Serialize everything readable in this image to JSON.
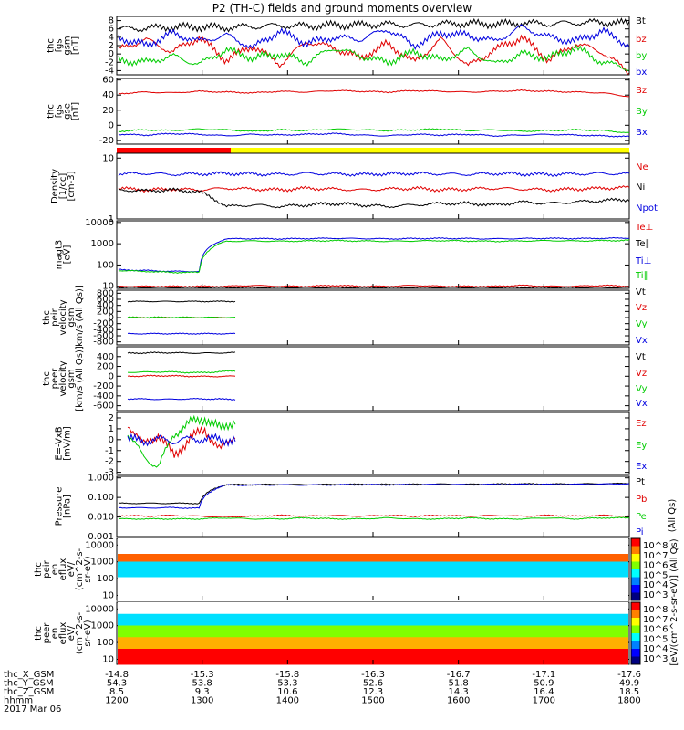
{
  "title": "P2 (TH-C) fields and ground moments overview",
  "colors": {
    "black": "#000000",
    "red": "#e00000",
    "green": "#00cc00",
    "blue": "#0000e0",
    "bar_red": "#ff0000",
    "bar_yellow": "#ffff00"
  },
  "chart_data": [
    {
      "type": "line",
      "id": "fgs_gsm",
      "ylabel": [
        "thc",
        "fgs",
        "gsm",
        "[nT]"
      ],
      "ylim": [
        -5,
        9
      ],
      "yticks": [
        "8",
        "6",
        "4",
        "2",
        "0",
        "-2",
        "-4"
      ],
      "series": [
        {
          "name": "Bt",
          "color": "#000000",
          "values": [
            6.0,
            6.2,
            6.4,
            6.5,
            6.3,
            6.6,
            6.8,
            6.7,
            6.9,
            7.0,
            7.1,
            6.9,
            7.2,
            7.3,
            7.1,
            7.4,
            7.2,
            7.5,
            7.6,
            7.3
          ]
        },
        {
          "name": "bz",
          "color": "#e00000",
          "values": [
            1.0,
            3.5,
            0.5,
            4.0,
            -1.5,
            2.0,
            -2.5,
            3.0,
            1.5,
            -1.0,
            2.5,
            -2.0,
            3.5,
            -3.0,
            1.0,
            4.0,
            -1.5,
            2.5,
            0.5,
            -4.5
          ]
        },
        {
          "name": "by",
          "color": "#00cc00",
          "values": [
            -1.5,
            -2.0,
            -0.5,
            -2.5,
            1.0,
            -1.0,
            0.0,
            -2.0,
            1.5,
            -0.5,
            -2.0,
            0.5,
            -1.5,
            1.0,
            -2.5,
            0.0,
            -1.0,
            1.5,
            -2.0,
            -3.5
          ]
        },
        {
          "name": "bx",
          "color": "#0000e0",
          "values": [
            4.0,
            2.0,
            5.0,
            3.0,
            4.5,
            1.5,
            5.5,
            2.5,
            4.0,
            3.5,
            6.0,
            2.0,
            5.0,
            4.5,
            3.0,
            6.5,
            4.0,
            3.0,
            5.5,
            2.0
          ]
        }
      ]
    },
    {
      "type": "line",
      "id": "fgs_gse",
      "ylabel": [
        "thc",
        "fgs",
        "gse",
        "[nT]"
      ],
      "ylim": [
        -25,
        62
      ],
      "yticks": [
        "60",
        "40",
        "20",
        "0",
        "-20"
      ],
      "series": [
        {
          "name": "Bz",
          "color": "#e00000",
          "values": [
            42,
            44,
            43,
            45,
            44,
            43,
            45,
            44,
            46,
            45,
            44,
            46,
            45,
            44,
            45,
            46,
            45,
            44,
            43,
            38
          ]
        },
        {
          "name": "By",
          "color": "#00cc00",
          "values": [
            -8,
            -6,
            -7,
            -5,
            -6,
            -8,
            -6,
            -7,
            -5,
            -6,
            -7,
            -6,
            -5,
            -7,
            -6,
            -8,
            -7,
            -6,
            -7,
            -10
          ]
        },
        {
          "name": "Bx",
          "color": "#0000e0",
          "values": [
            -12,
            -13,
            -11,
            -12,
            -14,
            -12,
            -13,
            -12,
            -11,
            -13,
            -14,
            -12,
            -13,
            -12,
            -14,
            -13,
            -12,
            -13,
            -14,
            -15
          ]
        }
      ]
    },
    {
      "type": "line",
      "id": "density",
      "ylabel": [
        "Density",
        "[1/cc]",
        "[cm-3]"
      ],
      "ylim_log": [
        1,
        12
      ],
      "yticks": [
        "10",
        "1"
      ],
      "series": [
        {
          "name": "Ne",
          "color": "#e00000",
          "values": [
            3.2,
            3.0,
            3.1,
            3.0,
            3.2,
            3.1,
            3.0,
            3.2,
            3.1,
            3.0,
            3.1,
            3.2,
            3.0,
            3.1,
            3.2,
            3.1,
            3.0,
            3.1,
            3.2,
            3.3
          ]
        },
        {
          "name": "Ni",
          "color": "#000000",
          "values": [
            3.0,
            2.9,
            3.0,
            2.8,
            1.6,
            1.7,
            1.6,
            1.7,
            1.8,
            1.7,
            1.6,
            1.7,
            1.8,
            1.8,
            1.7,
            1.9,
            1.8,
            1.9,
            2.0,
            2.1
          ]
        },
        {
          "name": "Npot",
          "color": "#0000e0",
          "values": [
            5.5,
            5.6,
            5.4,
            5.5,
            5.6,
            5.5,
            5.4,
            5.6,
            5.5,
            5.4,
            5.5,
            5.6,
            5.5,
            5.4,
            5.6,
            5.5,
            5.4,
            5.5,
            5.6,
            5.5
          ]
        }
      ]
    },
    {
      "type": "line",
      "id": "temperature",
      "ylabel": [
        "magt3",
        "[eV]"
      ],
      "ylim_log": [
        8,
        12000
      ],
      "yticks": [
        "10000",
        "1000",
        "100",
        "10"
      ],
      "series": [
        {
          "name": "Te⊥",
          "color": "#e00000",
          "values": [
            10,
            10,
            10,
            10,
            10,
            11,
            10,
            10,
            11,
            10,
            10,
            11,
            10,
            10,
            10,
            11,
            10,
            10,
            11,
            10
          ]
        },
        {
          "name": "Te∥",
          "color": "#000000",
          "values": [
            9,
            9,
            9,
            9,
            9,
            9,
            9,
            9,
            9,
            9,
            9,
            9,
            9,
            9,
            9,
            9,
            9,
            9,
            9,
            9
          ]
        },
        {
          "name": "Ti⊥",
          "color": "#0000e0",
          "values": [
            60,
            55,
            50,
            50,
            1700,
            1750,
            1700,
            1750,
            1800,
            1750,
            1700,
            1750,
            1800,
            1750,
            1700,
            1750,
            1800,
            1750,
            1800,
            1850
          ]
        },
        {
          "name": "Ti∥",
          "color": "#00cc00",
          "values": [
            55,
            50,
            45,
            45,
            1300,
            1350,
            1300,
            1350,
            1400,
            1350,
            1300,
            1350,
            1400,
            1350,
            1300,
            1350,
            1400,
            1350,
            1400,
            1450
          ]
        }
      ]
    },
    {
      "type": "line",
      "id": "peir_velocity",
      "ylabel": [
        "thc",
        "peir",
        "velocity",
        "gsm",
        "[km/s (All Qs)]"
      ],
      "ylim": [
        -900,
        900
      ],
      "yticks": [
        "800",
        "600",
        "400",
        "200",
        "0",
        "-200",
        "-400",
        "-600",
        "-800"
      ],
      "series": [
        {
          "name": "Vt",
          "color": "#000000",
          "values": [
            530,
            530,
            530,
            530
          ]
        },
        {
          "name": "Vz",
          "color": "#e00000",
          "values": [
            0,
            0,
            0,
            0
          ]
        },
        {
          "name": "Vy",
          "color": "#00cc00",
          "values": [
            5,
            5,
            5,
            5
          ]
        },
        {
          "name": "Vx",
          "color": "#0000e0",
          "values": [
            -530,
            -530,
            -530,
            -530
          ]
        }
      ]
    },
    {
      "type": "line",
      "id": "peer_velocity",
      "ylabel": [
        "thc",
        "peer",
        "velocity",
        "gsm",
        "[km/s (All Qs)]"
      ],
      "ylim": [
        -700,
        600
      ],
      "yticks": [
        "400",
        "200",
        "0",
        "-200",
        "-400",
        "-600"
      ],
      "series": [
        {
          "name": "Vt",
          "color": "#000000",
          "values": [
            470,
            480,
            470,
            480
          ]
        },
        {
          "name": "Vz",
          "color": "#e00000",
          "values": [
            0,
            10,
            -5,
            0
          ]
        },
        {
          "name": "Vy",
          "color": "#00cc00",
          "values": [
            80,
            90,
            70,
            110
          ]
        },
        {
          "name": "Vx",
          "color": "#0000e0",
          "values": [
            -460,
            -470,
            -460,
            -470
          ]
        }
      ]
    },
    {
      "type": "line",
      "id": "e_field",
      "ylabel": [
        "E=-VxB",
        "[mV/m]"
      ],
      "ylim": [
        -3.2,
        2.5
      ],
      "yticks": [
        "2",
        "1",
        "0",
        "-1",
        "-2",
        "-3"
      ],
      "series": [
        {
          "name": "Ez",
          "color": "#e00000",
          "values": [
            1.5,
            -0.5,
            0.5,
            -1.5,
            0.0,
            1.0,
            -1.0,
            0.5
          ]
        },
        {
          "name": "Ey",
          "color": "#00cc00",
          "values": [
            0.5,
            -1.5,
            -2.5,
            0.5,
            1.5,
            2.0,
            1.0,
            1.8
          ]
        },
        {
          "name": "Ex",
          "color": "#0000e0",
          "values": [
            0.0,
            -0.1,
            0.0,
            -0.1,
            0.0,
            0.1,
            0.0,
            0.0
          ]
        }
      ]
    },
    {
      "type": "line",
      "id": "pressure",
      "ylabel": [
        "Pressure",
        "[nPa]"
      ],
      "ylim_log": [
        0.001,
        1.2
      ],
      "yticks": [
        "1.000",
        "0.100",
        "0.010",
        "0.001"
      ],
      "series": [
        {
          "name": "Pt",
          "color": "#000000",
          "values": [
            0.05,
            0.05,
            0.05,
            0.05,
            0.45,
            0.45,
            0.46,
            0.45,
            0.46,
            0.47,
            0.46,
            0.47,
            0.48,
            0.47,
            0.48,
            0.49,
            0.48,
            0.49,
            0.5,
            0.52
          ]
        },
        {
          "name": "Pb",
          "color": "#e00000",
          "values": [
            0.012,
            0.011,
            0.012,
            0.011,
            0.01,
            0.011,
            0.012,
            0.011,
            0.012,
            0.011,
            0.012,
            0.011,
            0.012,
            0.011,
            0.012,
            0.011,
            0.012,
            0.011,
            0.012,
            0.011
          ]
        },
        {
          "name": "Pe",
          "color": "#00cc00",
          "values": [
            0.008,
            0.008,
            0.008,
            0.008,
            0.009,
            0.008,
            0.008,
            0.009,
            0.008,
            0.008,
            0.009,
            0.008,
            0.008,
            0.009,
            0.008,
            0.008,
            0.009,
            0.008,
            0.009,
            0.009
          ]
        },
        {
          "name": "Pi",
          "color": "#0000e0",
          "values": [
            0.03,
            0.029,
            0.03,
            0.028,
            0.43,
            0.43,
            0.44,
            0.43,
            0.44,
            0.45,
            0.44,
            0.45,
            0.46,
            0.45,
            0.46,
            0.47,
            0.46,
            0.47,
            0.48,
            0.5
          ]
        }
      ],
      "units_note": "(All Qs)"
    },
    {
      "type": "heatmap",
      "id": "peir_eflux",
      "ylabel": [
        "thc",
        "peir",
        "en",
        "eflux",
        "eV/",
        "(cm^2-s-",
        "sr-eV)"
      ],
      "ylim_log": [
        5,
        25000
      ],
      "yticks": [
        "10000",
        "1000",
        "100",
        "10"
      ],
      "colorbar": {
        "label": "[eV/(cm^2-s-sr-eV)] (All Qs)",
        "ticks": [
          "10^8",
          "10^7",
          "10^6",
          "10^5",
          "10^4",
          "10^3"
        ]
      }
    },
    {
      "type": "heatmap",
      "id": "peer_eflux",
      "ylabel": [
        "thc",
        "peer",
        "en",
        "eflux",
        "eV/",
        "(cm^2-s-",
        "sr-eV)"
      ],
      "ylim_log": [
        5,
        25000
      ],
      "yticks": [
        "10000",
        "1000",
        "100",
        "10"
      ],
      "colorbar": {
        "label": "[eV/(cm^2-s-sr-eV)]",
        "ticks": [
          "10^8",
          "10^7",
          "10^6",
          "10^5",
          "10^4",
          "10^3"
        ]
      }
    }
  ],
  "ephemeris": {
    "row_labels": [
      "thc_X_GSM",
      "thc_Y_GSM",
      "thc_Z_GSM",
      "hhmm",
      "2017 Mar 06"
    ],
    "columns": [
      [
        "-14.8",
        "54.3",
        "8.5",
        "1200"
      ],
      [
        "-15.3",
        "53.8",
        "9.3",
        "1300"
      ],
      [
        "-15.8",
        "53.3",
        "10.6",
        "1400"
      ],
      [
        "-16.3",
        "52.6",
        "12.3",
        "1500"
      ],
      [
        "-16.7",
        "51.8",
        "14.3",
        "1600"
      ],
      [
        "-17.1",
        "50.9",
        "16.4",
        "1700"
      ],
      [
        "-17.6",
        "49.9",
        "18.5",
        "1800"
      ]
    ]
  }
}
